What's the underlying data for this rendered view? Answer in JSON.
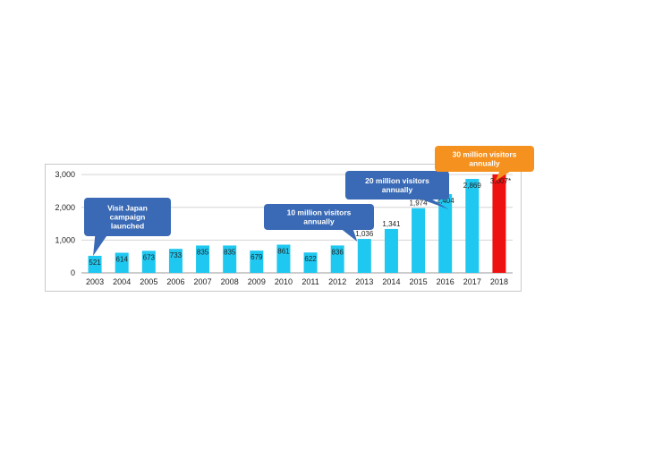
{
  "chart_data": {
    "type": "bar",
    "categories": [
      "2003",
      "2004",
      "2005",
      "2006",
      "2007",
      "2008",
      "2009",
      "2010",
      "2011",
      "2012",
      "2013",
      "2014",
      "2015",
      "2016",
      "2017",
      "2018"
    ],
    "values": [
      521,
      614,
      673,
      733,
      835,
      835,
      679,
      861,
      622,
      836,
      1036,
      1341,
      1974,
      2404,
      2869,
      3007
    ],
    "data_labels": [
      "521",
      "614",
      "673",
      "733",
      "835",
      "835",
      "679",
      "861",
      "622",
      "836",
      "1,036",
      "1,341",
      "1,974",
      "2,404",
      "2,869",
      "3,007"
    ],
    "yticks": [
      "0",
      "1,000",
      "2,000",
      "3,000"
    ],
    "ytick_values": [
      0,
      1000,
      2000,
      3000
    ],
    "ylim": [
      0,
      3250
    ],
    "grid": true,
    "bar_color": "#1fc8f0",
    "highlight_color": "#ee1111",
    "highlight_index": 15,
    "highlight_marker": "*",
    "annotations": [
      {
        "lines": [
          "Visit Japan",
          "campaign",
          "launched"
        ],
        "color": "#3a6ab5",
        "points_to": "2003"
      },
      {
        "lines": [
          "10 million visitors",
          "annually"
        ],
        "color": "#3a6ab5",
        "points_to": "2013"
      },
      {
        "lines": [
          "20 million visitors",
          "annually"
        ],
        "color": "#3a6ab5",
        "points_to": "2016"
      },
      {
        "lines": [
          "30 million visitors",
          "annually"
        ],
        "color": "#f5911e",
        "points_to": "2018"
      }
    ]
  }
}
